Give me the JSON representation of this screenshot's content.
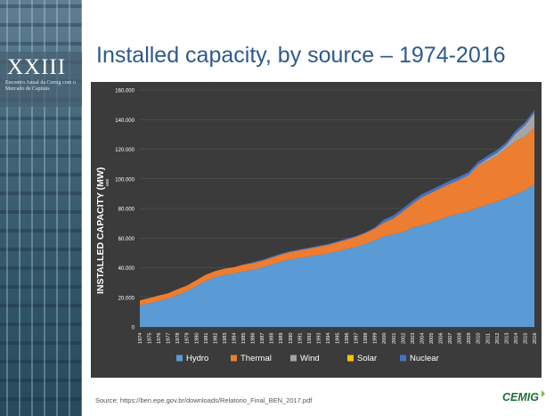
{
  "slide": {
    "title": "Installed capacity, by source – 1974-2016",
    "source": "Source: https://ben.epe.gov.br/downloads/Relatorio_Final_BEN_2017.pdf"
  },
  "sidebar": {
    "title": "XXIII",
    "subtitle": "Encontro Anual da Cemig com o Mercado de Capitais"
  },
  "logo": {
    "text": "CEMIG"
  },
  "colors": {
    "hydro": "#5b9bd5",
    "thermal": "#ed7d31",
    "wind": "#a5a5a5",
    "solar": "#ffc000",
    "nuclear": "#4472c4",
    "plot_bg": "#3b3b3b",
    "title": "#2d5a8c",
    "logo": "#1f6e3a"
  },
  "chart_data": {
    "type": "area",
    "stacked": true,
    "ylabel": "INSTALLED CAPACITY (MW)",
    "ylabel_unit": "MW",
    "ylim": [
      0,
      160000
    ],
    "yticks": [
      "0",
      "20.000",
      "40.000",
      "60.000",
      "80.000",
      "100.000",
      "120.000",
      "140.000",
      "160.000"
    ],
    "grid": true,
    "legend_position": "bottom",
    "x": [
      1974,
      1975,
      1976,
      1977,
      1978,
      1979,
      1980,
      1981,
      1982,
      1983,
      1984,
      1985,
      1986,
      1987,
      1988,
      1989,
      1990,
      1991,
      1992,
      1993,
      1994,
      1995,
      1996,
      1997,
      1998,
      1999,
      2000,
      2001,
      2002,
      2003,
      2004,
      2005,
      2006,
      2007,
      2008,
      2009,
      2010,
      2011,
      2012,
      2013,
      2014,
      2015,
      2016
    ],
    "series": [
      {
        "name": "Hydro",
        "color": "#5b9bd5",
        "values": [
          14500,
          16000,
          17500,
          19000,
          21500,
          24000,
          27500,
          31000,
          33500,
          35000,
          36000,
          37500,
          38500,
          40000,
          42000,
          44000,
          45500,
          46500,
          47500,
          48500,
          49500,
          51000,
          52500,
          54000,
          56000,
          58500,
          61000,
          62500,
          64000,
          67000,
          68500,
          70500,
          72500,
          75000,
          76500,
          78000,
          80500,
          82500,
          84500,
          87000,
          89500,
          92000,
          96500
        ]
      },
      {
        "name": "Thermal",
        "color": "#ed7d31",
        "values": [
          3500,
          3500,
          3700,
          3700,
          3900,
          3900,
          4000,
          4200,
          4200,
          4300,
          4300,
          4500,
          4500,
          4600,
          4700,
          4800,
          5000,
          5200,
          5400,
          5600,
          5800,
          6100,
          6400,
          6800,
          7200,
          8000,
          9500,
          10800,
          14000,
          16000,
          19000,
          20000,
          21000,
          21500,
          22500,
          24000,
          28000,
          29500,
          31000,
          33500,
          36000,
          36500,
          38000
        ]
      },
      {
        "name": "Wind",
        "color": "#a5a5a5",
        "values": [
          0,
          0,
          0,
          0,
          0,
          0,
          0,
          0,
          0,
          0,
          0,
          0,
          0,
          0,
          0,
          0,
          0,
          0,
          0,
          0,
          0,
          0,
          0,
          0,
          0,
          0,
          0,
          0,
          0,
          20,
          20,
          30,
          240,
          250,
          400,
          600,
          900,
          1500,
          1900,
          2200,
          4900,
          7600,
          10100
        ]
      },
      {
        "name": "Solar",
        "color": "#ffc000",
        "values": [
          0,
          0,
          0,
          0,
          0,
          0,
          0,
          0,
          0,
          0,
          0,
          0,
          0,
          0,
          0,
          0,
          0,
          0,
          0,
          0,
          0,
          0,
          0,
          0,
          0,
          0,
          0,
          0,
          0,
          0,
          0,
          0,
          0,
          0,
          0,
          0,
          0,
          0,
          0,
          0,
          15,
          20,
          25
        ]
      },
      {
        "name": "Nuclear",
        "color": "#4472c4",
        "values": [
          0,
          0,
          0,
          0,
          0,
          0,
          0,
          0,
          0,
          0,
          0,
          0,
          657,
          657,
          657,
          657,
          657,
          657,
          657,
          657,
          657,
          657,
          657,
          657,
          657,
          657,
          1966,
          2007,
          2007,
          2007,
          2007,
          2007,
          2007,
          2007,
          2007,
          2007,
          2007,
          1990,
          1990,
          1990,
          1990,
          1990,
          1990
        ]
      }
    ]
  }
}
